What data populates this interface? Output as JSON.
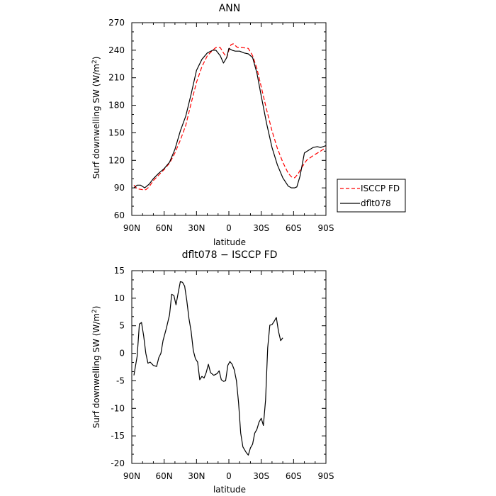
{
  "chart_data": [
    {
      "type": "line",
      "title": "ANN",
      "xlabel": "latitude",
      "ylabel_main": "Surf downwelling SW (W/m",
      "ylabel_sup": "2",
      "ylabel_close": ")",
      "xlim": [
        90,
        -90
      ],
      "ylim": [
        60,
        270
      ],
      "x_ticks": [
        {
          "value": 90,
          "label": "90N"
        },
        {
          "value": 60,
          "label": "60N"
        },
        {
          "value": 30,
          "label": "30N"
        },
        {
          "value": 0,
          "label": "0"
        },
        {
          "value": -30,
          "label": "30S"
        },
        {
          "value": -60,
          "label": "60S"
        },
        {
          "value": -90,
          "label": "90S"
        }
      ],
      "y_ticks": [
        60,
        90,
        120,
        150,
        180,
        210,
        240,
        270
      ],
      "legend_position": "right",
      "series": [
        {
          "name": "ISCCP FD",
          "color": "#ff0000",
          "dash": "dashed",
          "points": [
            [
              88,
              93
            ],
            [
              85,
              89
            ],
            [
              80,
              88
            ],
            [
              77,
              88
            ],
            [
              74,
              91
            ],
            [
              70,
              98
            ],
            [
              65,
              104
            ],
            [
              60,
              110
            ],
            [
              55,
              117
            ],
            [
              50,
              128
            ],
            [
              45,
              142
            ],
            [
              40,
              158
            ],
            [
              35,
              182
            ],
            [
              30,
              205
            ],
            [
              25,
              222
            ],
            [
              20,
              234
            ],
            [
              15,
              240
            ],
            [
              12,
              243
            ],
            [
              8,
              243
            ],
            [
              5,
              237
            ],
            [
              2,
              232
            ],
            [
              0,
              240
            ],
            [
              -2,
              246
            ],
            [
              -4,
              247
            ],
            [
              -8,
              243
            ],
            [
              -12,
              243
            ],
            [
              -18,
              242
            ],
            [
              -22,
              234
            ],
            [
              -26,
              220
            ],
            [
              -30,
              200
            ],
            [
              -35,
              175
            ],
            [
              -40,
              152
            ],
            [
              -45,
              133
            ],
            [
              -50,
              118
            ],
            [
              -55,
              106
            ],
            [
              -58,
              102
            ],
            [
              -61,
              101
            ],
            [
              -64,
              105
            ],
            [
              -68,
              113
            ],
            [
              -72,
              120
            ],
            [
              -78,
              125
            ],
            [
              -85,
              130
            ],
            [
              -90,
              134
            ]
          ]
        },
        {
          "name": "dflt078",
          "color": "#000000",
          "dash": "solid",
          "points": [
            [
              88,
              90
            ],
            [
              85,
              93
            ],
            [
              82,
              93
            ],
            [
              78,
              90
            ],
            [
              74,
              94
            ],
            [
              70,
              100
            ],
            [
              65,
              106
            ],
            [
              60,
              111
            ],
            [
              55,
              118
            ],
            [
              50,
              132
            ],
            [
              45,
              152
            ],
            [
              40,
              168
            ],
            [
              35,
              192
            ],
            [
              30,
              218
            ],
            [
              25,
              230
            ],
            [
              20,
              237
            ],
            [
              15,
              240
            ],
            [
              12,
              240
            ],
            [
              8,
              234
            ],
            [
              5,
              226
            ],
            [
              2,
              232
            ],
            [
              0,
              242
            ],
            [
              -3,
              240
            ],
            [
              -6,
              239
            ],
            [
              -10,
              239
            ],
            [
              -14,
              237
            ],
            [
              -18,
              236
            ],
            [
              -22,
              232
            ],
            [
              -26,
              215
            ],
            [
              -30,
              190
            ],
            [
              -35,
              160
            ],
            [
              -40,
              134
            ],
            [
              -45,
              115
            ],
            [
              -50,
              101
            ],
            [
              -55,
              92
            ],
            [
              -58,
              90
            ],
            [
              -61,
              90
            ],
            [
              -63,
              91
            ],
            [
              -66,
              103
            ],
            [
              -70,
              128
            ],
            [
              -74,
              131
            ],
            [
              -78,
              134
            ],
            [
              -82,
              135
            ],
            [
              -85,
              134
            ],
            [
              -90,
              136
            ]
          ]
        }
      ]
    },
    {
      "type": "line",
      "title": "dflt078 − ISCCP FD",
      "xlabel": "latitude",
      "ylabel_main": "Surf downwelling SW (W/m",
      "ylabel_sup": "2",
      "ylabel_close": ")",
      "xlim": [
        90,
        -90
      ],
      "ylim": [
        -20,
        15
      ],
      "x_ticks": [
        {
          "value": 90,
          "label": "90N"
        },
        {
          "value": 60,
          "label": "60N"
        },
        {
          "value": 30,
          "label": "30N"
        },
        {
          "value": 0,
          "label": "0"
        },
        {
          "value": -30,
          "label": "30S"
        },
        {
          "value": -60,
          "label": "60S"
        },
        {
          "value": -90,
          "label": "90S"
        }
      ],
      "y_ticks": [
        -20,
        -15,
        -10,
        -5,
        0,
        5,
        10,
        15
      ],
      "series": [
        {
          "color": "#000000",
          "dash": "solid",
          "points": [
            [
              88,
              -4
            ],
            [
              85,
              -0.5
            ],
            [
              83,
              5.3
            ],
            [
              81,
              5.6
            ],
            [
              79,
              3.2
            ],
            [
              77,
              0
            ],
            [
              75,
              -1.8
            ],
            [
              73,
              -1.6
            ],
            [
              70,
              -2.2
            ],
            [
              67,
              -2.4
            ],
            [
              65,
              -0.8
            ],
            [
              63,
              0
            ],
            [
              61,
              2.3
            ],
            [
              58,
              4.5
            ],
            [
              55,
              7
            ],
            [
              53,
              10.7
            ],
            [
              51,
              10.5
            ],
            [
              49,
              8.8
            ],
            [
              47,
              11
            ],
            [
              45,
              13
            ],
            [
              43,
              12.9
            ],
            [
              41,
              12.2
            ],
            [
              39,
              9.6
            ],
            [
              37,
              6.3
            ],
            [
              35,
              4
            ],
            [
              33,
              0.5
            ],
            [
              31,
              -1
            ],
            [
              29,
              -1.6
            ],
            [
              27,
              -4.8
            ],
            [
              25,
              -4.2
            ],
            [
              23,
              -4.5
            ],
            [
              21,
              -3.5
            ],
            [
              19,
              -2
            ],
            [
              17,
              -3.5
            ],
            [
              14,
              -4
            ],
            [
              11,
              -3.7
            ],
            [
              9,
              -3.2
            ],
            [
              7,
              -4.8
            ],
            [
              5,
              -5.1
            ],
            [
              3,
              -5
            ],
            [
              1,
              -2.2
            ],
            [
              -1,
              -1.5
            ],
            [
              -3,
              -2
            ],
            [
              -5,
              -3
            ],
            [
              -7,
              -5
            ],
            [
              -9,
              -9
            ],
            [
              -11,
              -14.5
            ],
            [
              -13,
              -17
            ],
            [
              -16,
              -18
            ],
            [
              -18,
              -18.5
            ],
            [
              -20,
              -17.2
            ],
            [
              -22,
              -16.5
            ],
            [
              -24,
              -14.5
            ],
            [
              -26,
              -13.8
            ],
            [
              -28,
              -12.5
            ],
            [
              -30,
              -11.8
            ],
            [
              -32,
              -13.1
            ],
            [
              -34,
              -8.5
            ],
            [
              -36,
              1
            ],
            [
              -38,
              5.1
            ],
            [
              -40,
              5.2
            ],
            [
              -42,
              5.8
            ],
            [
              -44,
              6.5
            ],
            [
              -46,
              4
            ],
            [
              -48,
              2.3
            ],
            [
              -50,
              2.8
            ]
          ]
        }
      ]
    }
  ]
}
